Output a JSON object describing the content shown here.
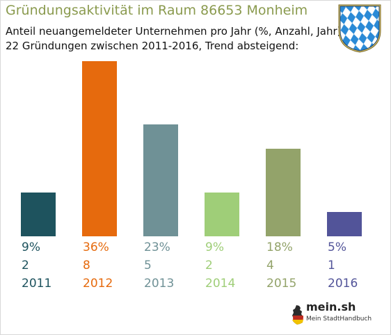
{
  "header": {
    "title": "Gründungsaktivität im Raum 86653 Monheim",
    "subtitle_line1": "Anteil neuangemeldeter Unternehmen pro Jahr (%, Anzahl, Jahr)",
    "subtitle_line2": "22 Gründungen zwischen 2011-2016, Trend absteigend:"
  },
  "icons": {
    "crest": "bavaria-crest-icon",
    "brand": "germany-map-icon"
  },
  "brand": {
    "name": "mein.sh",
    "tagline": "Mein StadtHandbuch"
  },
  "chart_data": {
    "type": "bar",
    "categories": [
      "2011",
      "2012",
      "2013",
      "2014",
      "2015",
      "2016"
    ],
    "values": [
      9,
      36,
      23,
      9,
      18,
      5
    ],
    "percent_labels": [
      "9%",
      "36%",
      "23%",
      "9%",
      "18%",
      "5%"
    ],
    "counts": [
      "2",
      "8",
      "5",
      "2",
      "4",
      "1"
    ],
    "colors": [
      "#1e535e",
      "#e66a0d",
      "#6f9196",
      "#9fce78",
      "#93a36a",
      "#525499"
    ],
    "ylim": [
      0,
      36
    ],
    "grid": false,
    "legend": "none"
  }
}
